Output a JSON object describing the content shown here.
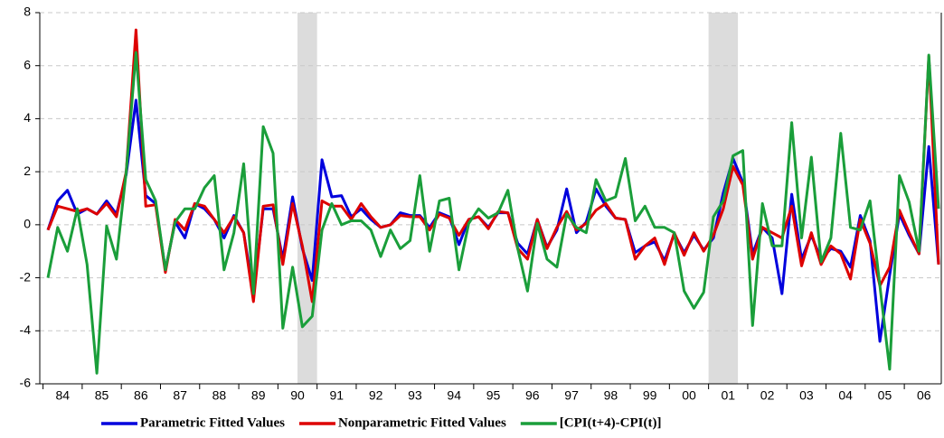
{
  "chart_data": {
    "type": "line",
    "categories": [
      null,
      "84",
      null,
      null,
      null,
      "85",
      null,
      null,
      null,
      "86",
      null,
      null,
      null,
      "87",
      null,
      null,
      null,
      "88",
      null,
      null,
      null,
      "89",
      null,
      null,
      null,
      "90",
      null,
      null,
      null,
      "91",
      null,
      null,
      null,
      "92",
      null,
      null,
      null,
      "93",
      null,
      null,
      null,
      "94",
      null,
      null,
      null,
      "95",
      null,
      null,
      null,
      "96",
      null,
      null,
      null,
      "97",
      null,
      null,
      null,
      "98",
      null,
      null,
      null,
      "99",
      null,
      null,
      null,
      "00",
      null,
      null,
      null,
      "01",
      null,
      null,
      null,
      "02",
      null,
      null,
      null,
      "03",
      null,
      null,
      null,
      "04",
      null,
      null,
      null,
      "05",
      null,
      null,
      null,
      "06",
      null,
      null
    ],
    "series": [
      {
        "name": "Parametric Fitted Values",
        "color": "#0000dd",
        "values": [
          -0.2,
          0.9,
          1.3,
          0.4,
          0.6,
          0.4,
          0.9,
          0.4,
          1.9,
          4.7,
          1.1,
          0.8,
          -1.7,
          0.1,
          -0.5,
          0.8,
          0.6,
          0.2,
          -0.5,
          0.35,
          -0.3,
          -2.6,
          0.6,
          0.6,
          -1.3,
          1.05,
          -0.9,
          -2.1,
          2.45,
          1.05,
          1.1,
          0.3,
          0.6,
          0.2,
          -0.1,
          0.0,
          0.45,
          0.35,
          0.35,
          -0.1,
          0.45,
          0.3,
          -0.75,
          0.2,
          0.3,
          -0.1,
          0.45,
          0.45,
          -0.7,
          -1.1,
          0.2,
          -0.85,
          -0.2,
          1.35,
          -0.3,
          0.1,
          1.35,
          0.7,
          0.25,
          0.2,
          -1.05,
          -0.8,
          -0.65,
          -1.35,
          -0.35,
          -1.05,
          -0.4,
          -0.95,
          -0.5,
          1.2,
          2.5,
          1.6,
          -1.1,
          -0.1,
          -0.5,
          -2.6,
          1.15,
          -1.3,
          -0.4,
          -1.3,
          -0.9,
          -1.0,
          -1.6,
          0.35,
          -0.6,
          -4.4,
          -1.9,
          0.4,
          -0.4,
          -1.1,
          2.95,
          -1.5
        ]
      },
      {
        "name": "Nonparametric Fitted Values",
        "color": "#dd0000",
        "values": [
          -0.2,
          0.7,
          0.6,
          0.5,
          0.6,
          0.4,
          0.8,
          0.3,
          2.0,
          7.35,
          0.7,
          0.75,
          -1.8,
          0.2,
          -0.2,
          0.8,
          0.7,
          0.2,
          -0.3,
          0.3,
          -0.3,
          -2.9,
          0.7,
          0.75,
          -1.5,
          0.8,
          -0.8,
          -2.9,
          0.9,
          0.7,
          0.7,
          0.2,
          0.8,
          0.3,
          -0.1,
          0.0,
          0.35,
          0.3,
          0.3,
          -0.2,
          0.4,
          0.25,
          -0.4,
          0.2,
          0.3,
          -0.15,
          0.5,
          0.45,
          -0.9,
          -1.3,
          0.2,
          -0.9,
          -0.1,
          0.5,
          -0.2,
          0.05,
          0.55,
          0.8,
          0.25,
          0.2,
          -1.3,
          -0.8,
          -0.5,
          -1.5,
          -0.3,
          -1.15,
          -0.3,
          -1.0,
          -0.4,
          0.6,
          2.2,
          1.5,
          -1.3,
          -0.1,
          -0.3,
          -0.5,
          0.7,
          -1.55,
          -0.3,
          -1.5,
          -0.8,
          -1.1,
          -2.05,
          0.2,
          -0.7,
          -2.3,
          -1.6,
          0.55,
          -0.3,
          -1.1,
          6.35,
          -1.5
        ]
      },
      {
        "name": "[CPI(t+4)-CPI(t)]",
        "color": "#1a9e3a",
        "values": [
          -2.0,
          -0.1,
          -1.0,
          0.6,
          -1.5,
          -5.6,
          -0.05,
          -1.3,
          2.0,
          6.5,
          1.7,
          0.9,
          -1.7,
          0.1,
          0.6,
          0.6,
          1.4,
          1.85,
          -1.7,
          -0.3,
          2.3,
          -2.6,
          3.7,
          2.7,
          -3.9,
          -1.6,
          -3.85,
          -3.45,
          -0.2,
          0.8,
          0.0,
          0.15,
          0.15,
          -0.2,
          -1.2,
          -0.2,
          -0.9,
          -0.6,
          1.85,
          -1.0,
          0.9,
          1.0,
          -1.7,
          0.05,
          0.6,
          0.25,
          0.45,
          1.3,
          -0.9,
          -2.5,
          0.05,
          -1.3,
          -1.6,
          0.4,
          -0.1,
          -0.3,
          1.7,
          0.9,
          1.05,
          2.5,
          0.15,
          0.7,
          -0.1,
          -0.1,
          -0.3,
          -2.5,
          -3.15,
          -2.55,
          0.3,
          0.9,
          2.6,
          2.8,
          -3.8,
          0.8,
          -0.8,
          -0.8,
          3.85,
          -0.5,
          2.55,
          -1.4,
          -0.5,
          3.45,
          -0.1,
          -0.2,
          0.9,
          -2.3,
          -5.45,
          1.85,
          0.85,
          -1.0,
          6.4,
          0.6
        ]
      }
    ],
    "shaded_periods": [
      [
        26,
        27
      ],
      [
        68,
        70
      ]
    ],
    "shade_color": "#dcdcdc",
    "ylim": [
      -6,
      8
    ],
    "yticks": [
      -6,
      -4,
      -2,
      0,
      2,
      4,
      6,
      8
    ],
    "grid": true,
    "legend": "bottom"
  }
}
